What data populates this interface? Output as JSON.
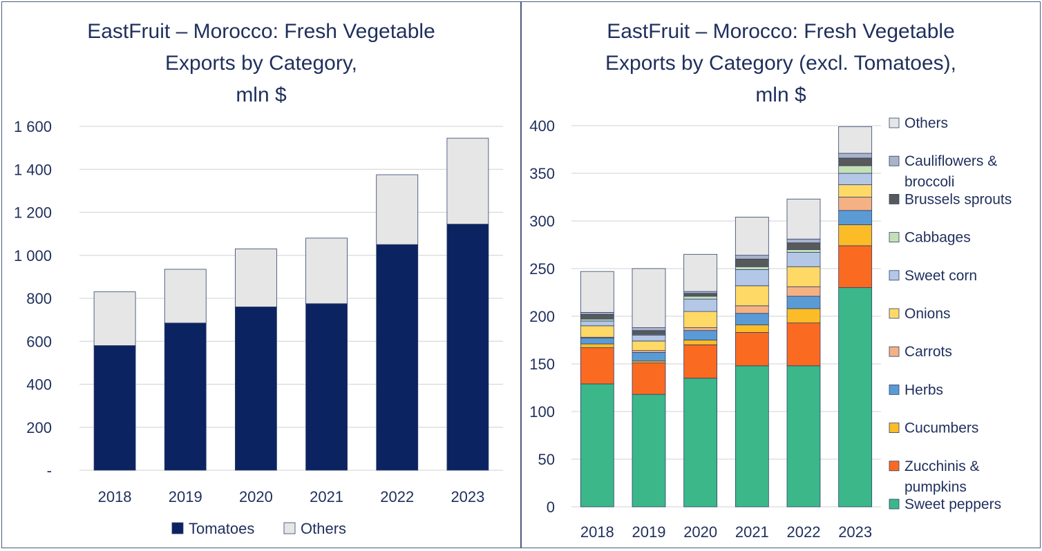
{
  "chart_data": [
    {
      "type": "bar",
      "stacked": true,
      "title": [
        "EastFruit – Morocco: Fresh Vegetable",
        "Exports by Category,",
        "mln $"
      ],
      "categories": [
        "2018",
        "2019",
        "2020",
        "2021",
        "2022",
        "2023"
      ],
      "yticks": [
        "-",
        "200",
        "400",
        "600",
        "800",
        "1 000",
        "1 200",
        "1 400",
        "1 600"
      ],
      "ylim": [
        0,
        1600
      ],
      "grid": true,
      "legend_position": "bottom",
      "series": [
        {
          "name": "Tomatoes",
          "color": "#0b2360",
          "values": [
            580,
            685,
            760,
            775,
            1050,
            1145
          ]
        },
        {
          "name": "Others",
          "color": "#e6e6e6",
          "values": [
            250,
            250,
            270,
            305,
            325,
            400
          ]
        }
      ]
    },
    {
      "type": "bar",
      "stacked": true,
      "title": [
        "EastFruit – Morocco: Fresh Vegetable",
        "Exports by Category (excl. Tomatoes),",
        "mln $"
      ],
      "categories": [
        "2018",
        "2019",
        "2020",
        "2021",
        "2022",
        "2023"
      ],
      "yticks": [
        "0",
        "50",
        "100",
        "150",
        "200",
        "250",
        "300",
        "350",
        "400"
      ],
      "ylim": [
        0,
        400
      ],
      "grid": true,
      "legend_position": "right",
      "series": [
        {
          "name": "Sweet peppers",
          "color": "#3bb78a",
          "values": [
            129,
            118,
            135,
            148,
            148,
            230
          ]
        },
        {
          "name": "Zucchinis & pumpkins",
          "color": "#fb6a21",
          "values": [
            38,
            33,
            35,
            35,
            45,
            44
          ]
        },
        {
          "name": "Cucumbers",
          "color": "#fbbc27",
          "values": [
            4,
            2,
            5,
            8,
            15,
            22
          ]
        },
        {
          "name": "Herbs",
          "color": "#5b9bd5",
          "values": [
            6,
            9,
            10,
            12,
            13,
            15
          ]
        },
        {
          "name": "Carrots",
          "color": "#f4b183",
          "values": [
            1,
            2,
            3,
            8,
            10,
            14
          ]
        },
        {
          "name": "Onions",
          "color": "#ffd966",
          "values": [
            12,
            10,
            17,
            21,
            21,
            13
          ]
        },
        {
          "name": "Sweet corn",
          "color": "#b4c7e7",
          "values": [
            5,
            6,
            13,
            17,
            15,
            12
          ]
        },
        {
          "name": "Cabbages",
          "color": "#c5e0b4",
          "values": [
            2,
            1,
            3,
            3,
            3,
            8
          ]
        },
        {
          "name": "Brussels sprouts",
          "color": "#595959",
          "values": [
            5,
            4,
            3,
            8,
            7,
            8
          ]
        },
        {
          "name": "Cauliflowers & broccoli",
          "color": "#a9b4c8",
          "values": [
            2,
            3,
            2,
            4,
            4,
            5
          ]
        },
        {
          "name": "Others",
          "color": "#e6e6e6",
          "values": [
            43,
            62,
            39,
            40,
            42,
            28
          ]
        }
      ]
    }
  ]
}
